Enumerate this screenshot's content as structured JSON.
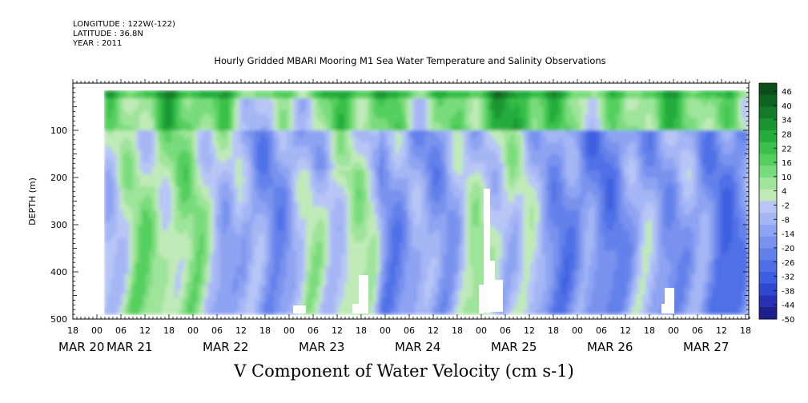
{
  "header": {
    "longitude": "LONGITUDE : 122W(-122)",
    "latitude": "LATITUDE : 36.8N",
    "year": "YEAR : 2011"
  },
  "chart_data": {
    "type": "heatmap",
    "title": "Hourly Gridded MBARI Mooring M1 Sea Water Temperature and Salinity Observations",
    "xlabel": "",
    "ylabel": "DEPTH (m)",
    "colorbar_label": "V Component of Water Velocity (cm s-1)",
    "y_range": [
      0,
      500
    ],
    "y_ticks": [
      100,
      200,
      300,
      400,
      500
    ],
    "y_tick_labels": [
      "100",
      "200",
      "300",
      "400",
      "500"
    ],
    "x_start_hours_label": "MAR 20 18",
    "hour_ticks": [
      "18",
      "00",
      "06",
      "12",
      "18",
      "00",
      "06",
      "12",
      "18",
      "00",
      "06",
      "12",
      "18",
      "00",
      "06",
      "12",
      "18",
      "00",
      "06",
      "12",
      "18",
      "00",
      "06",
      "12",
      "18",
      "00",
      "06",
      "12",
      "18"
    ],
    "date_labels": [
      {
        "label": "MAR 20",
        "index": 0
      },
      {
        "label": "MAR 21",
        "index": 2
      },
      {
        "label": "MAR 22",
        "index": 6
      },
      {
        "label": "MAR 23",
        "index": 10
      },
      {
        "label": "MAR 24",
        "index": 14
      },
      {
        "label": "MAR 25",
        "index": 18
      },
      {
        "label": "MAR 26",
        "index": 22
      },
      {
        "label": "MAR 27",
        "index": 26
      }
    ],
    "colorbar_ticks": [
      "46",
      "40",
      "34",
      "28",
      "22",
      "16",
      "10",
      "4",
      "-2",
      "-8",
      "-14",
      "-20",
      "-26",
      "-32",
      "-38",
      "-44",
      "-50"
    ],
    "colorbar_range": [
      -50,
      50
    ]
  }
}
